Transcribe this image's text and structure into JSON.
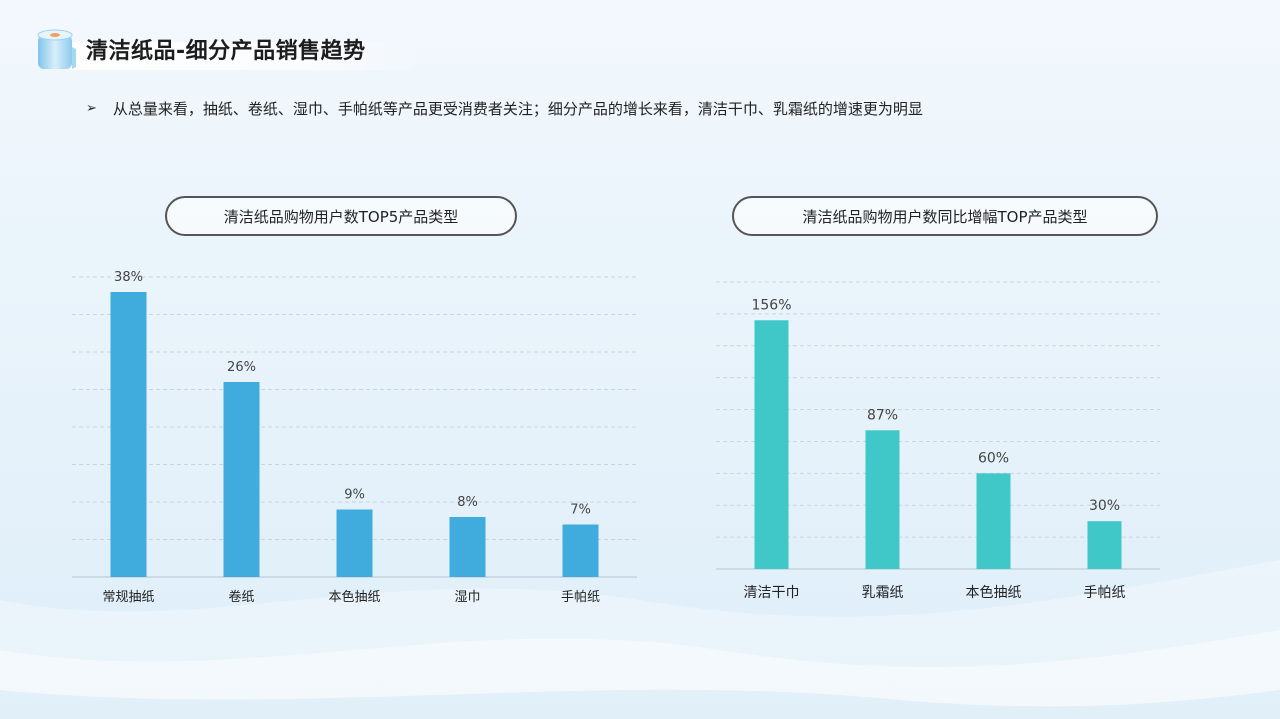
{
  "title": "清洁纸品-细分产品销售趋势",
  "bullet": "从总量来看，抽纸、卷纸、湿巾、手帕纸等产品更受消费者关注；细分产品的增长来看，清洁干巾、乳霜纸的增速更为明显",
  "icons": {
    "header": "tissue-roll-icon",
    "bullet": "arrow-bullet-icon"
  },
  "colors": {
    "left_bar": "#3facdd",
    "right_bar": "#40c8c8",
    "grid": "#c9d4df"
  },
  "chart_data": [
    {
      "type": "bar",
      "title": "清洁纸品购物用户数TOP5产品类型",
      "categories": [
        "常规抽纸",
        "卷纸",
        "本色抽纸",
        "湿巾",
        "手帕纸"
      ],
      "values": [
        38,
        26,
        9,
        8,
        7
      ],
      "value_labels": [
        "38%",
        "26%",
        "9%",
        "8%",
        "7%"
      ],
      "ylim": [
        0,
        40
      ],
      "grid": true,
      "xlabel": "",
      "ylabel": ""
    },
    {
      "type": "bar",
      "title": "清洁纸品购物用户数同比增幅TOP产品类型",
      "categories": [
        "清洁干巾",
        "乳霜纸",
        "本色抽纸",
        "手帕纸"
      ],
      "values": [
        156,
        87,
        60,
        30
      ],
      "value_labels": [
        "156%",
        "87%",
        "60%",
        "30%"
      ],
      "ylim": [
        0,
        180
      ],
      "grid": true,
      "xlabel": "",
      "ylabel": ""
    }
  ]
}
